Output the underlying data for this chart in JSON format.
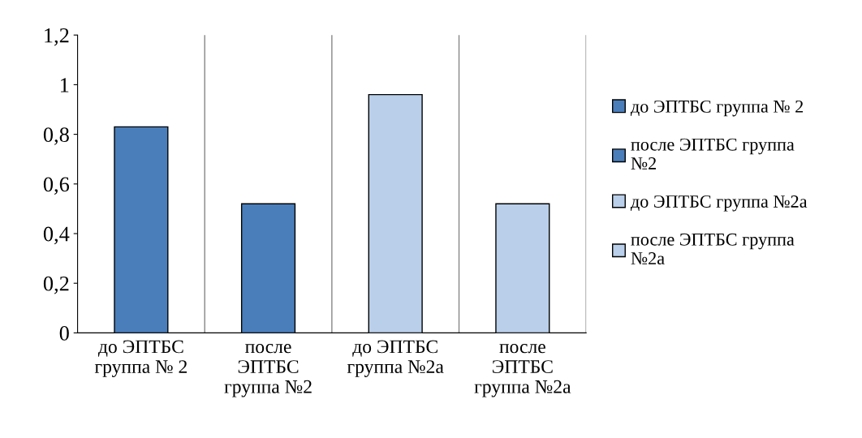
{
  "chart_data": {
    "type": "bar",
    "categories": [
      "до ЭПТБС\nгруппа № 2",
      "после\nЭПТБС\nгруппа №2",
      "до ЭПТБС\nгруппа №2а",
      "после\nЭПТБС\nгруппа №2а"
    ],
    "series": [
      {
        "name": "до ЭПТБС группа № 2",
        "color": "#4a7ebb",
        "values": [
          0.83,
          null,
          null,
          null
        ]
      },
      {
        "name": "после ЭПТБС группа\n№2",
        "color": "#4a7ebb",
        "values": [
          null,
          0.52,
          null,
          null
        ]
      },
      {
        "name": "до ЭПТБС группа №2а",
        "color": "#b9cfea",
        "values": [
          null,
          null,
          0.96,
          null
        ]
      },
      {
        "name": "после ЭПТБС группа\n№2а",
        "color": "#b9cfea",
        "values": [
          null,
          null,
          null,
          0.52
        ]
      }
    ],
    "ylim": [
      0,
      1.2
    ],
    "yticks": [
      0,
      {
        "value": 0.2,
        "label": "0,2"
      },
      {
        "value": 0.4,
        "label": "0,4"
      },
      {
        "value": 0.6,
        "label": "0,6"
      },
      {
        "value": 0.8,
        "label": "0,8"
      },
      1,
      {
        "value": 1.2,
        "label": "1,2"
      }
    ],
    "grid": "x",
    "legend": "right"
  }
}
